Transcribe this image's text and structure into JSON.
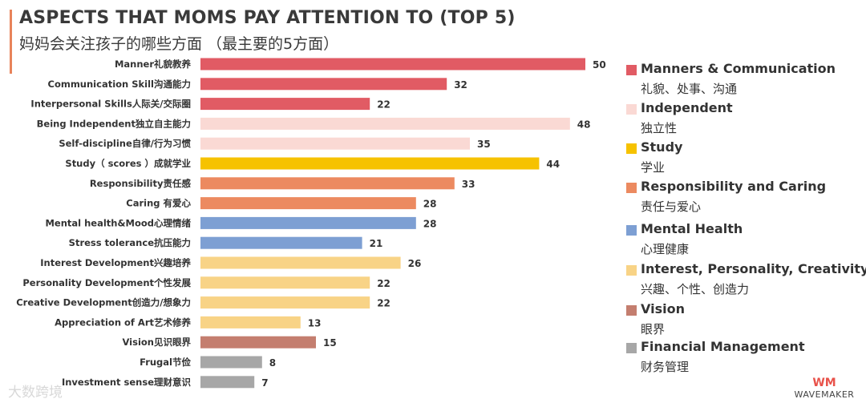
{
  "title": "ASPECTS THAT MOMS PAY ATTENTION TO (TOP 5)",
  "subtitle": "妈妈会关注孩子的哪些方面 （最主要的5方面）",
  "chart_data": {
    "type": "bar",
    "orientation": "horizontal",
    "title": "ASPECTS THAT MOMS PAY ATTENTION TO (TOP 5)",
    "xlim": [
      0,
      50
    ],
    "categories": [
      "Manner礼貌教养",
      "Communication Skill沟通能力",
      "Interpersonal Skills人际关/交际圈",
      "Being Independent独立自主能力",
      "Self-discipline自律/行为习惯",
      "Study（ scores ）成就学业",
      "Responsibility责任感",
      "Caring 有爱心",
      "Mental health&Mood心理情绪",
      "Stress tolerance抗压能力",
      "Interest Development兴趣培养",
      "Personality Development个性发展",
      "Creative Development创造力/想象力",
      "Appreciation of Art艺术修养",
      "Vision见识眼界",
      "Frugal节俭",
      "Investment sense理财意识"
    ],
    "values": [
      50,
      32,
      22,
      48,
      35,
      44,
      33,
      28,
      28,
      21,
      26,
      22,
      22,
      13,
      15,
      8,
      7
    ],
    "groups": [
      0,
      0,
      0,
      1,
      1,
      2,
      3,
      3,
      4,
      4,
      5,
      5,
      5,
      5,
      6,
      7,
      7
    ]
  },
  "legend": [
    {
      "en": "Manners & Communication",
      "cn": "礼貌、处事、沟通",
      "color": "#e15b64"
    },
    {
      "en": "Independent",
      "cn": "独立性",
      "color": "#fad9d4"
    },
    {
      "en": "Study",
      "cn": "学业",
      "color": "#f6c200"
    },
    {
      "en": "Responsibility and Caring",
      "cn": "责任与爱心",
      "color": "#ec8a60"
    },
    {
      "en": "Mental Health",
      "cn": "心理健康",
      "color": "#7d9fd3"
    },
    {
      "en": "Interest, Personality, Creativity",
      "cn": "兴趣、个性、创造力",
      "color": "#f8d386"
    },
    {
      "en": "Vision",
      "cn": "眼界",
      "color": "#c47e6f"
    },
    {
      "en": "Financial Management",
      "cn": "财务管理",
      "color": "#a7a7a7"
    }
  ],
  "logo": {
    "mark": "WM",
    "text": "WAVEMAKER"
  },
  "watermark": "大数跨境"
}
